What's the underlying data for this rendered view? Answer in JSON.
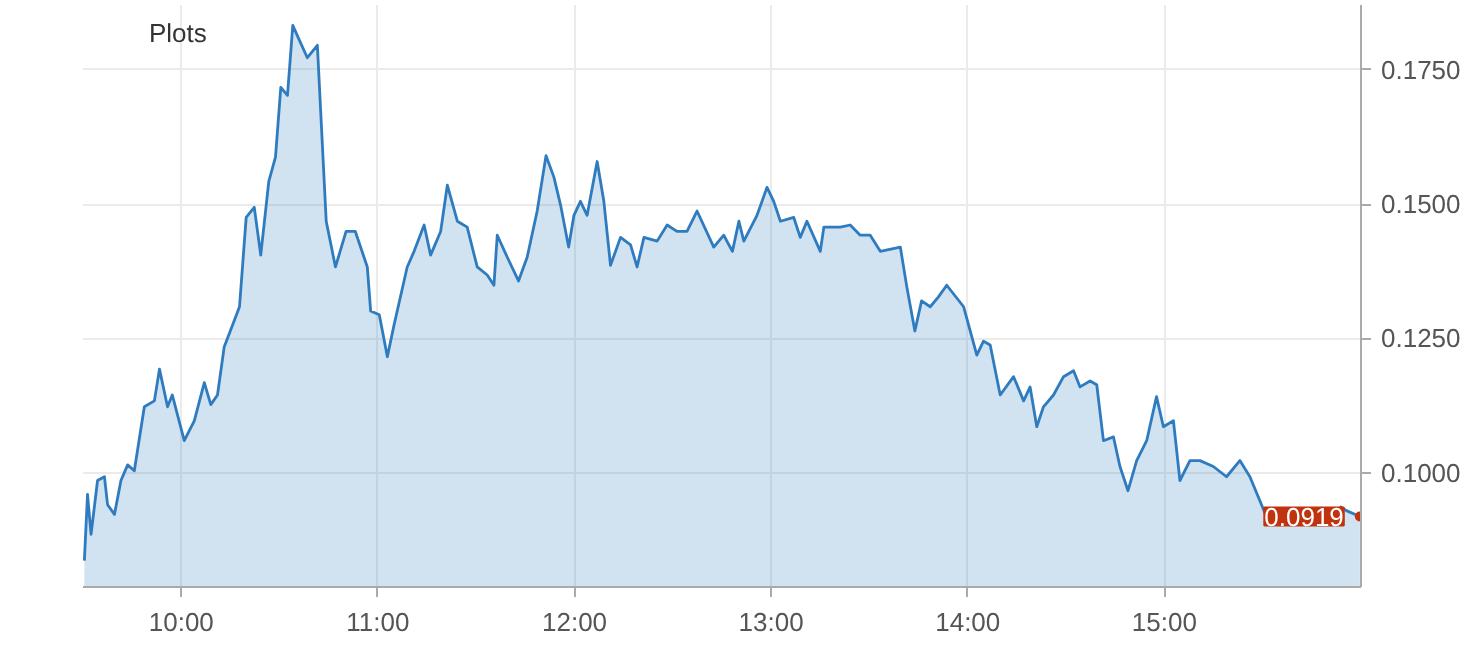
{
  "chart_data": {
    "type": "area",
    "annotations": [
      "Plots",
      {
        "text": "0.0919",
        "x": 15.994,
        "y": 0.0919
      }
    ],
    "series": [
      {
        "color": "#2f7bbf",
        "x": [
          9.507,
          9.523,
          9.541,
          9.574,
          9.609,
          9.625,
          9.66,
          9.693,
          9.727,
          9.761,
          9.812,
          9.863,
          9.889,
          9.93,
          9.954,
          10.015,
          10.066,
          10.117,
          10.15,
          10.184,
          10.218,
          10.269,
          10.296,
          10.33,
          10.371,
          10.404,
          10.445,
          10.479,
          10.506,
          10.54,
          10.567,
          10.59,
          10.641,
          10.692,
          10.737,
          10.784,
          10.838,
          10.885,
          10.946,
          10.963,
          11.007,
          11.048,
          11.082,
          11.149,
          11.184,
          11.235,
          11.268,
          11.319,
          11.353,
          11.404,
          11.454,
          11.505,
          11.556,
          11.59,
          11.607,
          11.658,
          11.715,
          11.759,
          11.81,
          11.855,
          11.895,
          11.929,
          11.97,
          11.997,
          12.03,
          12.064,
          12.115,
          12.149,
          12.183,
          12.234,
          12.285,
          12.318,
          12.353,
          12.42,
          12.471,
          12.521,
          12.572,
          12.623,
          12.708,
          12.759,
          12.803,
          12.836,
          12.861,
          12.928,
          12.979,
          13.013,
          13.047,
          13.115,
          13.148,
          13.182,
          13.25,
          13.268,
          13.352,
          13.402,
          13.453,
          13.504,
          13.555,
          13.657,
          13.69,
          13.731,
          13.765,
          13.809,
          13.85,
          13.893,
          13.979,
          14.046,
          14.08,
          14.114,
          14.165,
          14.233,
          14.284,
          14.317,
          14.351,
          14.385,
          14.436,
          14.487,
          14.538,
          14.571,
          14.622,
          14.656,
          14.69,
          14.741,
          14.774,
          14.815,
          14.859,
          14.91,
          14.96,
          14.995,
          15.046,
          15.079,
          15.13,
          15.181,
          15.249,
          15.316,
          15.384,
          15.435,
          15.519,
          15.75,
          15.892,
          15.926,
          15.994
        ],
        "values": [
          0.0837,
          0.096,
          0.0886,
          0.0986,
          0.0993,
          0.0941,
          0.0923,
          0.0986,
          0.1015,
          0.1004,
          0.1123,
          0.1134,
          0.1193,
          0.1123,
          0.1145,
          0.106,
          0.1097,
          0.1168,
          0.1127,
          0.1145,
          0.1234,
          0.1283,
          0.1309,
          0.1475,
          0.1494,
          0.1405,
          0.1542,
          0.1587,
          0.1717,
          0.1702,
          0.1832,
          0.1813,
          0.1772,
          0.1795,
          0.1468,
          0.1383,
          0.1449,
          0.1449,
          0.1383,
          0.1301,
          0.1294,
          0.1216,
          0.1275,
          0.1383,
          0.1412,
          0.1461,
          0.1405,
          0.1449,
          0.1535,
          0.1468,
          0.1457,
          0.1383,
          0.1368,
          0.1349,
          0.1442,
          0.1401,
          0.1357,
          0.1401,
          0.1487,
          0.159,
          0.155,
          0.1498,
          0.142,
          0.1479,
          0.1505,
          0.1479,
          0.1579,
          0.1505,
          0.1386,
          0.1438,
          0.1424,
          0.1383,
          0.1438,
          0.1431,
          0.1461,
          0.1449,
          0.1449,
          0.1487,
          0.142,
          0.1442,
          0.1412,
          0.1468,
          0.1431,
          0.1479,
          0.1531,
          0.1505,
          0.1468,
          0.1475,
          0.1438,
          0.1468,
          0.1412,
          0.1457,
          0.1457,
          0.1461,
          0.1442,
          0.1442,
          0.1412,
          0.142,
          0.1346,
          0.1264,
          0.132,
          0.1309,
          0.1327,
          0.1349,
          0.1309,
          0.1219,
          0.1245,
          0.1238,
          0.1145,
          0.1179,
          0.1134,
          0.116,
          0.1086,
          0.1123,
          0.1145,
          0.1179,
          0.119,
          0.116,
          0.1171,
          0.1164,
          0.106,
          0.1067,
          0.1012,
          0.0967,
          0.1023,
          0.106,
          0.1142,
          0.1086,
          0.1097,
          0.0986,
          0.1023,
          0.1023,
          0.1012,
          0.0993,
          0.1023,
          0.0993,
          0.0919,
          null,
          0.0938,
          0.093,
          0.0919
        ]
      }
    ],
    "xlim": [
      9.5,
      16.0
    ],
    "ylim": [
      0.0788,
      0.187
    ],
    "xticks": [
      {
        "value": 10,
        "label": "10:00"
      },
      {
        "value": 11,
        "label": "11:00"
      },
      {
        "value": 12,
        "label": "12:00"
      },
      {
        "value": 13,
        "label": "13:00"
      },
      {
        "value": 14,
        "label": "14:00"
      },
      {
        "value": 15,
        "label": "15:00"
      }
    ],
    "yticks": [
      {
        "value": 0.1,
        "label": "0.1000"
      },
      {
        "value": 0.125,
        "label": "0.1250"
      },
      {
        "value": 0.15,
        "label": "0.1500"
      },
      {
        "value": 0.175,
        "label": "0.1750"
      }
    ],
    "grid": true
  }
}
